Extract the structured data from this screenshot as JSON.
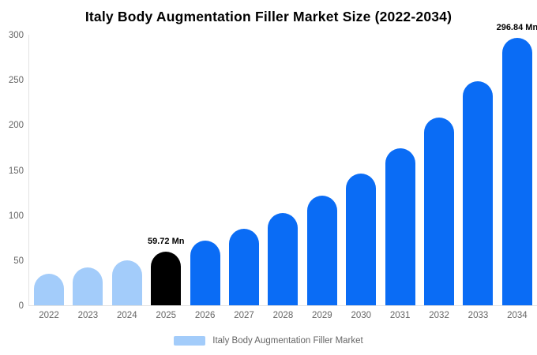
{
  "title": "Italy Body Augmentation Filler Market Size (2022-2034)",
  "legend": {
    "label": "Italy Body Augmentation Filler Market"
  },
  "chart_data": {
    "type": "bar",
    "title": "Italy Body Augmentation Filler Market Size (2022-2034)",
    "xlabel": "",
    "ylabel": "",
    "unit": "Mn",
    "ylim": [
      0,
      300
    ],
    "yticks": [
      0,
      50,
      100,
      150,
      200,
      250,
      300
    ],
    "grid": false,
    "legend_position": "bottom",
    "categories": [
      "2022",
      "2023",
      "2024",
      "2025",
      "2026",
      "2027",
      "2028",
      "2029",
      "2030",
      "2031",
      "2032",
      "2033",
      "2034"
    ],
    "series": [
      {
        "name": "Italy Body Augmentation Filler Market",
        "values": [
          35.0,
          41.8,
          50.0,
          59.72,
          71.4,
          85.3,
          102.0,
          121.9,
          145.7,
          174.1,
          208.1,
          248.7,
          296.84
        ]
      }
    ],
    "annotations": [
      "59.72 Mn",
      "296.84 Mn"
    ],
    "colors": {
      "historical": "#A3CCFA",
      "base_year": "#000000",
      "forecast": "#0A6CF5"
    },
    "bars": [
      {
        "year": "2022",
        "value": 35.0,
        "color": "historical",
        "label": ""
      },
      {
        "year": "2023",
        "value": 41.8,
        "color": "historical",
        "label": ""
      },
      {
        "year": "2024",
        "value": 50.0,
        "color": "historical",
        "label": ""
      },
      {
        "year": "2025",
        "value": 59.72,
        "color": "base_year",
        "label": "59.72 Mn"
      },
      {
        "year": "2026",
        "value": 71.4,
        "color": "forecast",
        "label": ""
      },
      {
        "year": "2027",
        "value": 85.3,
        "color": "forecast",
        "label": ""
      },
      {
        "year": "2028",
        "value": 102.0,
        "color": "forecast",
        "label": ""
      },
      {
        "year": "2029",
        "value": 121.9,
        "color": "forecast",
        "label": ""
      },
      {
        "year": "2030",
        "value": 145.7,
        "color": "forecast",
        "label": ""
      },
      {
        "year": "2031",
        "value": 174.1,
        "color": "forecast",
        "label": ""
      },
      {
        "year": "2032",
        "value": 208.1,
        "color": "forecast",
        "label": ""
      },
      {
        "year": "2033",
        "value": 248.7,
        "color": "forecast",
        "label": ""
      },
      {
        "year": "2034",
        "value": 296.84,
        "color": "forecast",
        "label": "296.84 Mn"
      }
    ]
  }
}
